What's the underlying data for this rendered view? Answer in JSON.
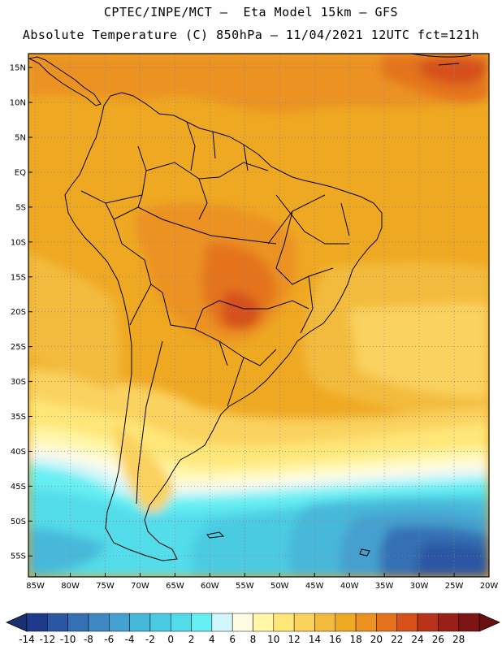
{
  "header": {
    "line1": "CPTEC/INPE/MCT —  Eta Model 15km — GFS",
    "line2": "Absolute Temperature (C) 850hPa — 11/04/2021 12UTC fct=121h"
  },
  "map": {
    "lon_range": [
      -86,
      -20
    ],
    "lat_range": [
      -58,
      17
    ],
    "lat_ticks": [
      {
        "value": 15,
        "label": "15N"
      },
      {
        "value": 10,
        "label": "10N"
      },
      {
        "value": 5,
        "label": "5N"
      },
      {
        "value": 0,
        "label": "EQ"
      },
      {
        "value": -5,
        "label": "5S"
      },
      {
        "value": -10,
        "label": "10S"
      },
      {
        "value": -15,
        "label": "15S"
      },
      {
        "value": -20,
        "label": "20S"
      },
      {
        "value": -25,
        "label": "25S"
      },
      {
        "value": -30,
        "label": "30S"
      },
      {
        "value": -35,
        "label": "35S"
      },
      {
        "value": -40,
        "label": "40S"
      },
      {
        "value": -45,
        "label": "45S"
      },
      {
        "value": -50,
        "label": "50S"
      },
      {
        "value": -55,
        "label": "55S"
      }
    ],
    "lon_ticks": [
      {
        "value": -85,
        "label": "85W"
      },
      {
        "value": -80,
        "label": "80W"
      },
      {
        "value": -75,
        "label": "75W"
      },
      {
        "value": -70,
        "label": "70W"
      },
      {
        "value": -65,
        "label": "65W"
      },
      {
        "value": -60,
        "label": "60W"
      },
      {
        "value": -55,
        "label": "55W"
      },
      {
        "value": -50,
        "label": "50W"
      },
      {
        "value": -45,
        "label": "45W"
      },
      {
        "value": -40,
        "label": "40W"
      },
      {
        "value": -35,
        "label": "35W"
      },
      {
        "value": -30,
        "label": "30W"
      },
      {
        "value": -25,
        "label": "25W"
      },
      {
        "value": -20,
        "label": "20W"
      }
    ]
  },
  "colorbar": {
    "labels": [
      "-14",
      "-12",
      "-10",
      "-8",
      "-6",
      "-4",
      "-2",
      "0",
      "2",
      "4",
      "6",
      "8",
      "10",
      "12",
      "14",
      "16",
      "18",
      "20",
      "22",
      "24",
      "26",
      "28"
    ],
    "colors": [
      "#1f3a8a",
      "#2a56a3",
      "#3570b4",
      "#3e87c2",
      "#44a0cf",
      "#47b8d9",
      "#4bcbe2",
      "#52dcea",
      "#66eff2",
      "#d2f6fb",
      "#fffbe3",
      "#fff6a8",
      "#ffe678",
      "#fad25e",
      "#f3bb3e",
      "#efa822",
      "#eb9223",
      "#e4731b",
      "#d6501a",
      "#b9331a",
      "#982017",
      "#7c1513"
    ],
    "under_color": "#1b2f73",
    "over_color": "#6a0f10"
  }
}
